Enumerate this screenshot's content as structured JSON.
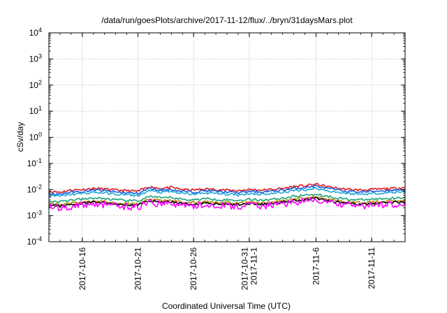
{
  "chart_data": {
    "type": "line",
    "title": "/data/run/goesPlots/archive/2017-11-12/flux/../bryn/31daysMars.plot",
    "xlabel": "Coordinated Universal Time (UTC)",
    "ylabel": "cSv/day",
    "y_scale": "log",
    "ylim": [
      0.0001,
      10000
    ],
    "y_ticks": [
      {
        "base": "10",
        "exp": "-4"
      },
      {
        "base": "10",
        "exp": "-3"
      },
      {
        "base": "10",
        "exp": "-2"
      },
      {
        "base": "10",
        "exp": "-1"
      },
      {
        "base": "10",
        "exp": "0"
      },
      {
        "base": "10",
        "exp": "1"
      },
      {
        "base": "10",
        "exp": "2"
      },
      {
        "base": "10",
        "exp": "3"
      },
      {
        "base": "10",
        "exp": "4"
      }
    ],
    "xlim": [
      "2017-10-13",
      "2017-11-14"
    ],
    "x_ticks": [
      {
        "date": "2017-10-16",
        "label": [
          "2017-10-16"
        ]
      },
      {
        "date": "2017-10-21",
        "label": [
          "2017-10-21"
        ]
      },
      {
        "date": "2017-10-26",
        "label": [
          "2017-10-26"
        ]
      },
      {
        "date": "2017-10-31",
        "label": [
          "2017-10-31",
          "2017-11-1"
        ]
      },
      {
        "date": "2017-11-06",
        "label": [
          "2017-11-6"
        ]
      },
      {
        "date": "2017-11-11",
        "label": [
          "2017-11-11"
        ]
      }
    ],
    "grid": true,
    "legend": "none",
    "x": [
      "2017-10-13",
      "2017-10-14",
      "2017-10-15",
      "2017-10-16",
      "2017-10-17",
      "2017-10-18",
      "2017-10-19",
      "2017-10-20",
      "2017-10-21",
      "2017-10-22",
      "2017-10-23",
      "2017-10-24",
      "2017-10-25",
      "2017-10-26",
      "2017-10-27",
      "2017-10-28",
      "2017-10-29",
      "2017-10-30",
      "2017-10-31",
      "2017-11-01",
      "2017-11-02",
      "2017-11-03",
      "2017-11-04",
      "2017-11-05",
      "2017-11-06",
      "2017-11-07",
      "2017-11-08",
      "2017-11-09",
      "2017-11-10",
      "2017-11-11",
      "2017-11-12",
      "2017-11-13",
      "2017-11-14"
    ],
    "series": [
      {
        "color": "#e41a1c",
        "values": [
          0.0085,
          0.008,
          0.0095,
          0.01,
          0.011,
          0.0105,
          0.0095,
          0.009,
          0.0085,
          0.013,
          0.011,
          0.012,
          0.01,
          0.0095,
          0.0105,
          0.01,
          0.0095,
          0.009,
          0.01,
          0.0095,
          0.01,
          0.011,
          0.013,
          0.014,
          0.016,
          0.013,
          0.011,
          0.01,
          0.0095,
          0.01,
          0.0105,
          0.011,
          0.012
        ]
      },
      {
        "color": "#1a5fe0",
        "values": [
          0.007,
          0.0065,
          0.008,
          0.0085,
          0.0095,
          0.009,
          0.008,
          0.0075,
          0.007,
          0.011,
          0.0095,
          0.01,
          0.0085,
          0.008,
          0.009,
          0.0085,
          0.008,
          0.0075,
          0.0085,
          0.008,
          0.0085,
          0.0095,
          0.011,
          0.012,
          0.0135,
          0.011,
          0.0095,
          0.0085,
          0.008,
          0.0085,
          0.009,
          0.0095,
          0.01
        ]
      },
      {
        "color": "#22a8d8",
        "values": [
          0.0058,
          0.0055,
          0.0066,
          0.007,
          0.0078,
          0.0074,
          0.0066,
          0.0062,
          0.0058,
          0.009,
          0.0078,
          0.0082,
          0.007,
          0.0066,
          0.0074,
          0.007,
          0.0066,
          0.0062,
          0.007,
          0.0066,
          0.007,
          0.0078,
          0.009,
          0.0098,
          0.011,
          0.009,
          0.0078,
          0.007,
          0.0066,
          0.007,
          0.0074,
          0.0078,
          0.0082
        ]
      },
      {
        "color": "#1aa37a",
        "values": [
          0.0036,
          0.0034,
          0.004,
          0.0042,
          0.0047,
          0.0045,
          0.004,
          0.0038,
          0.0036,
          0.0055,
          0.0047,
          0.005,
          0.0042,
          0.004,
          0.0045,
          0.0042,
          0.004,
          0.0038,
          0.0042,
          0.004,
          0.0042,
          0.0047,
          0.0055,
          0.006,
          0.0068,
          0.0055,
          0.0047,
          0.0042,
          0.004,
          0.0042,
          0.0045,
          0.0047,
          0.005
        ]
      },
      {
        "color": "#b8860b",
        "values": [
          0.0028,
          0.0026,
          0.0031,
          0.0033,
          0.0037,
          0.0035,
          0.0031,
          0.0029,
          0.0028,
          0.0043,
          0.0037,
          0.0039,
          0.0033,
          0.0031,
          0.0035,
          0.0033,
          0.0031,
          0.0029,
          0.0033,
          0.0031,
          0.0033,
          0.0037,
          0.0043,
          0.0047,
          0.0053,
          0.0043,
          0.0037,
          0.0033,
          0.0031,
          0.0033,
          0.0035,
          0.0037,
          0.0039
        ]
      },
      {
        "color": "#000000",
        "values": [
          0.0025,
          0.0023,
          0.0027,
          0.0029,
          0.0033,
          0.0031,
          0.0027,
          0.0026,
          0.0025,
          0.0038,
          0.0033,
          0.0034,
          0.0029,
          0.0027,
          0.0031,
          0.0029,
          0.0027,
          0.0026,
          0.0029,
          0.0027,
          0.0029,
          0.0033,
          0.0038,
          0.0041,
          0.0047,
          0.0038,
          0.0033,
          0.0029,
          0.0027,
          0.0029,
          0.0031,
          0.0033,
          0.0034
        ]
      },
      {
        "color": "#ff00ff",
        "values": [
          0.0021,
          0.0019,
          0.0023,
          0.0025,
          0.0028,
          0.0026,
          0.0023,
          0.0022,
          0.0021,
          0.0032,
          0.0028,
          0.0029,
          0.0025,
          0.0023,
          0.0026,
          0.0025,
          0.0023,
          0.0022,
          0.0025,
          0.0023,
          0.0025,
          0.0028,
          0.0032,
          0.0035,
          0.004,
          0.0032,
          0.0028,
          0.0025,
          0.0023,
          0.0025,
          0.0026,
          0.0028,
          0.0029
        ]
      }
    ]
  }
}
